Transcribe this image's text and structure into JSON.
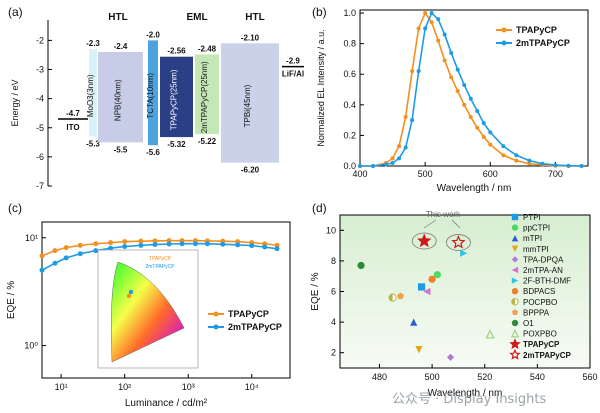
{
  "panels": {
    "a": "(a)",
    "b": "(b)",
    "c": "(c)",
    "d": "(d)"
  },
  "watermark": "公众号 · Display Insights",
  "chart_data": [
    {
      "id": "a",
      "type": "diagram",
      "ylabel": "Energy / eV",
      "ylim": [
        -7,
        -1.3
      ],
      "yticks": [
        "-2",
        "-3",
        "-4",
        "-5",
        "-6",
        "-7"
      ],
      "yvals": [
        -2,
        -3,
        -4,
        -5,
        -6,
        -7
      ],
      "groups": [
        {
          "label": "HTL",
          "at": 1.5
        },
        {
          "label": "EML",
          "at": 4
        },
        {
          "label": "HTL",
          "at": 6.5
        }
      ],
      "layers": [
        {
          "name": "ITO",
          "lumo": null,
          "homo": -4.7,
          "color": "none",
          "topLabel": "",
          "botLabel": "-4.7"
        },
        {
          "name": "MoO3(3nm)",
          "lumo": -2.3,
          "homo": -5.3,
          "color": "#d9f2f8",
          "topLabel": "-2.3",
          "botLabel": "-5.3"
        },
        {
          "name": "NPB(40nm)",
          "lumo": -2.4,
          "homo": -5.5,
          "color": "#c7cde6",
          "topLabel": "-2.4",
          "botLabel": "-5.5"
        },
        {
          "name": "TCTA(10nm)",
          "lumo": -2.0,
          "homo": -5.6,
          "color": "#4da3de",
          "topLabel": "-2.0",
          "botLabel": "-5.6"
        },
        {
          "name": "TPAPyCP(25nm)",
          "lumo": -2.56,
          "homo": -5.32,
          "color": "#2a3f85",
          "topLabel": "-2.56",
          "botLabel": "-5.32"
        },
        {
          "name": "2mTPAPyCP(25nm)",
          "lumo": -2.48,
          "homo": -5.22,
          "color": "#c5e7b5",
          "topLabel": "-2.48",
          "botLabel": "-5.22"
        },
        {
          "name": "TPBi(45nm)",
          "lumo": -2.1,
          "homo": -6.2,
          "color": "#c9d2e8",
          "topLabel": "-2.10",
          "botLabel": "-6.20"
        },
        {
          "name": "LiF/Al",
          "lumo": -2.9,
          "homo": null,
          "color": "none",
          "topLabel": "-2.9",
          "botLabel": ""
        }
      ]
    },
    {
      "id": "b",
      "type": "line",
      "xlabel": "Wavelength / nm",
      "ylabel": "Normalized EL Intensity / a.u.",
      "xlim": [
        400,
        750
      ],
      "ylim": [
        0,
        1.02
      ],
      "xticks": [
        400,
        500,
        600,
        700
      ],
      "yticks": [
        0.0,
        0.2,
        0.4,
        0.6,
        0.8,
        1.0
      ],
      "legend": "top-right",
      "series": [
        {
          "name": "TPAPyCP",
          "color": "#f39020",
          "x": [
            400,
            420,
            440,
            450,
            460,
            470,
            480,
            490,
            500,
            510,
            520,
            530,
            540,
            550,
            560,
            570,
            580,
            590,
            600,
            620,
            640,
            660,
            680,
            700,
            720,
            740
          ],
          "y": [
            0.0,
            0.0,
            0.02,
            0.05,
            0.13,
            0.32,
            0.62,
            0.9,
            1.0,
            0.94,
            0.82,
            0.69,
            0.58,
            0.49,
            0.4,
            0.32,
            0.25,
            0.19,
            0.14,
            0.07,
            0.035,
            0.015,
            0.006,
            0.002,
            0.0,
            0.0
          ]
        },
        {
          "name": "2mTPAPyCP",
          "color": "#1e9be6",
          "x": [
            400,
            420,
            440,
            450,
            460,
            470,
            480,
            490,
            500,
            510,
            520,
            530,
            540,
            550,
            560,
            570,
            580,
            590,
            600,
            620,
            640,
            660,
            680,
            700,
            720,
            740
          ],
          "y": [
            0.0,
            0.0,
            0.01,
            0.02,
            0.05,
            0.12,
            0.3,
            0.62,
            0.9,
            1.0,
            0.96,
            0.86,
            0.74,
            0.63,
            0.53,
            0.44,
            0.36,
            0.28,
            0.22,
            0.13,
            0.07,
            0.035,
            0.015,
            0.006,
            0.002,
            0.0
          ]
        }
      ]
    },
    {
      "id": "c",
      "type": "line",
      "xlabel": "Luminance / cd/m²",
      "ylabel": "EQE / %",
      "xscale": "log",
      "yscale": "log",
      "xlim": [
        5,
        40000
      ],
      "ylim": [
        0.5,
        14
      ],
      "xticks": [
        "10¹",
        "10²",
        "10³",
        "10⁴"
      ],
      "xtickvals": [
        10,
        100,
        1000,
        10000
      ],
      "yticks": [
        "10⁰",
        "10¹"
      ],
      "ytickvals": [
        1,
        10
      ],
      "legend": "middle-right",
      "inset": {
        "labels": [
          "TPAPyCP",
          "2mTPAPyCP"
        ]
      },
      "series": [
        {
          "name": "TPAPyCP",
          "color": "#f39020",
          "x": [
            5,
            8,
            12,
            20,
            35,
            60,
            100,
            180,
            300,
            500,
            800,
            1300,
            2000,
            3500,
            6000,
            10000,
            16000,
            25000
          ],
          "y": [
            6.8,
            7.6,
            8.1,
            8.5,
            8.8,
            9.0,
            9.2,
            9.3,
            9.35,
            9.4,
            9.4,
            9.4,
            9.35,
            9.3,
            9.2,
            9.0,
            8.8,
            8.5
          ]
        },
        {
          "name": "2mTPAPyCP",
          "color": "#1e9be6",
          "x": [
            5,
            8,
            12,
            20,
            35,
            60,
            100,
            180,
            300,
            500,
            800,
            1300,
            2000,
            3500,
            6000,
            10000,
            16000,
            25000
          ],
          "y": [
            5.0,
            5.8,
            6.5,
            7.1,
            7.6,
            8.0,
            8.3,
            8.5,
            8.65,
            8.75,
            8.8,
            8.8,
            8.8,
            8.7,
            8.6,
            8.45,
            8.2,
            7.9
          ]
        }
      ]
    },
    {
      "id": "d",
      "type": "scatter",
      "xlabel": "Wavelength / nm",
      "ylabel": "EQE / %",
      "xlim": [
        465,
        560
      ],
      "ylim": [
        1,
        11
      ],
      "xticks": [
        480,
        500,
        520,
        540,
        560
      ],
      "yticks": [
        2,
        4,
        6,
        8,
        10
      ],
      "annotation": "This work",
      "legend": "right",
      "points": [
        {
          "name": "PTPI",
          "x": 496,
          "y": 6.3,
          "color": "#1e9be6",
          "shape": "square"
        },
        {
          "name": "ppCTPI",
          "x": 502,
          "y": 7.1,
          "color": "#4cd964",
          "shape": "circle"
        },
        {
          "name": "mTPI",
          "x": 493,
          "y": 4.0,
          "color": "#2b5fcf",
          "shape": "triangle"
        },
        {
          "name": "mmTPI",
          "x": 495,
          "y": 2.2,
          "color": "#e8a317",
          "shape": "tri-down"
        },
        {
          "name": "TPA-DPQA",
          "x": 507,
          "y": 1.7,
          "color": "#b07ad6",
          "shape": "diamond"
        },
        {
          "name": "2mTPA-AN",
          "x": 498,
          "y": 6.0,
          "color": "#d86fd0",
          "shape": "tri-left"
        },
        {
          "name": "2F-BTH-DMF",
          "x": 512,
          "y": 8.5,
          "color": "#33c3e8",
          "shape": "tri-right"
        },
        {
          "name": "BDPACS",
          "x": 500,
          "y": 6.8,
          "color": "#f07f2a",
          "shape": "circle"
        },
        {
          "name": "POCPBO",
          "x": 485,
          "y": 5.6,
          "color": "#b8b44a",
          "shape": "half-circle"
        },
        {
          "name": "BPPPA",
          "x": 488,
          "y": 5.7,
          "color": "#f0a050",
          "shape": "pentagon"
        },
        {
          "name": "O1",
          "x": 473,
          "y": 7.7,
          "color": "#2e8b3a",
          "shape": "circle"
        },
        {
          "name": "POXPBO",
          "x": 522,
          "y": 3.2,
          "color": "#9bd47a",
          "shape": "tri-open"
        },
        {
          "name": "TPAPyCP",
          "x": 497,
          "y": 9.3,
          "color": "#cc1a1a",
          "shape": "star"
        },
        {
          "name": "2mTPAPyCP",
          "x": 510,
          "y": 9.2,
          "color": "#cc1a1a",
          "shape": "star-open"
        }
      ]
    }
  ]
}
